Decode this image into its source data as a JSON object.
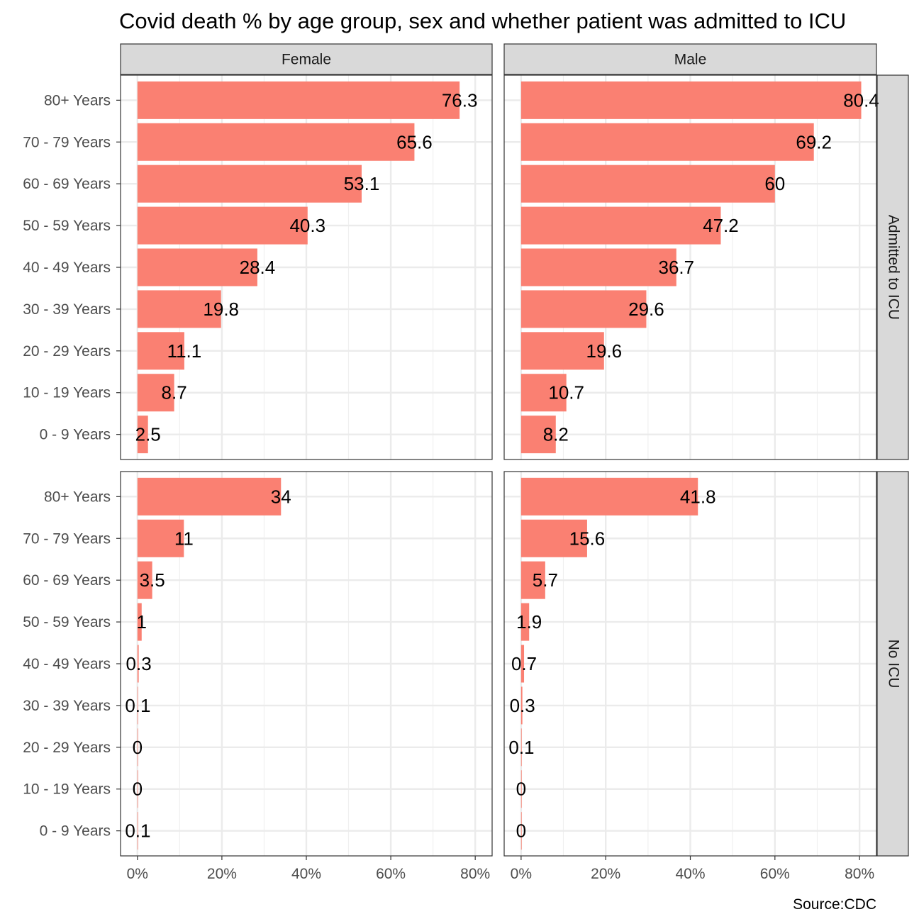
{
  "chart_data": {
    "type": "bar",
    "orientation": "horizontal",
    "title": "Covid death % by age group, sex and whether patient was admitted to ICU",
    "caption": "Source:CDC",
    "categories": [
      "80+ Years",
      "70 - 79 Years",
      "60 - 69 Years",
      "50 - 59 Years",
      "40 - 49 Years",
      "30 - 39 Years",
      "20 - 29 Years",
      "10 - 19 Years",
      "0 - 9 Years"
    ],
    "columns": [
      "Female",
      "Male"
    ],
    "rows": [
      "Admitted to ICU",
      "No ICU"
    ],
    "x_ticks": [
      "0%",
      "20%",
      "40%",
      "60%",
      "80%"
    ],
    "x_tick_values": [
      0,
      20,
      40,
      60,
      80
    ],
    "xlim": [
      -4,
      84
    ],
    "bar_color": "#FA8072",
    "grid": true,
    "panels": [
      {
        "column": "Female",
        "row": "Admitted to ICU",
        "values": [
          76.3,
          65.6,
          53.1,
          40.3,
          28.4,
          19.8,
          11.1,
          8.7,
          2.5
        ]
      },
      {
        "column": "Male",
        "row": "Admitted to ICU",
        "values": [
          80.4,
          69.2,
          60,
          47.2,
          36.7,
          29.6,
          19.6,
          10.7,
          8.2
        ]
      },
      {
        "column": "Female",
        "row": "No ICU",
        "values": [
          34,
          11,
          3.5,
          1,
          0.3,
          0.1,
          0,
          0,
          0.1
        ]
      },
      {
        "column": "Male",
        "row": "No ICU",
        "values": [
          41.8,
          15.6,
          5.7,
          1.9,
          0.7,
          0.3,
          0.1,
          0,
          0
        ]
      }
    ]
  }
}
